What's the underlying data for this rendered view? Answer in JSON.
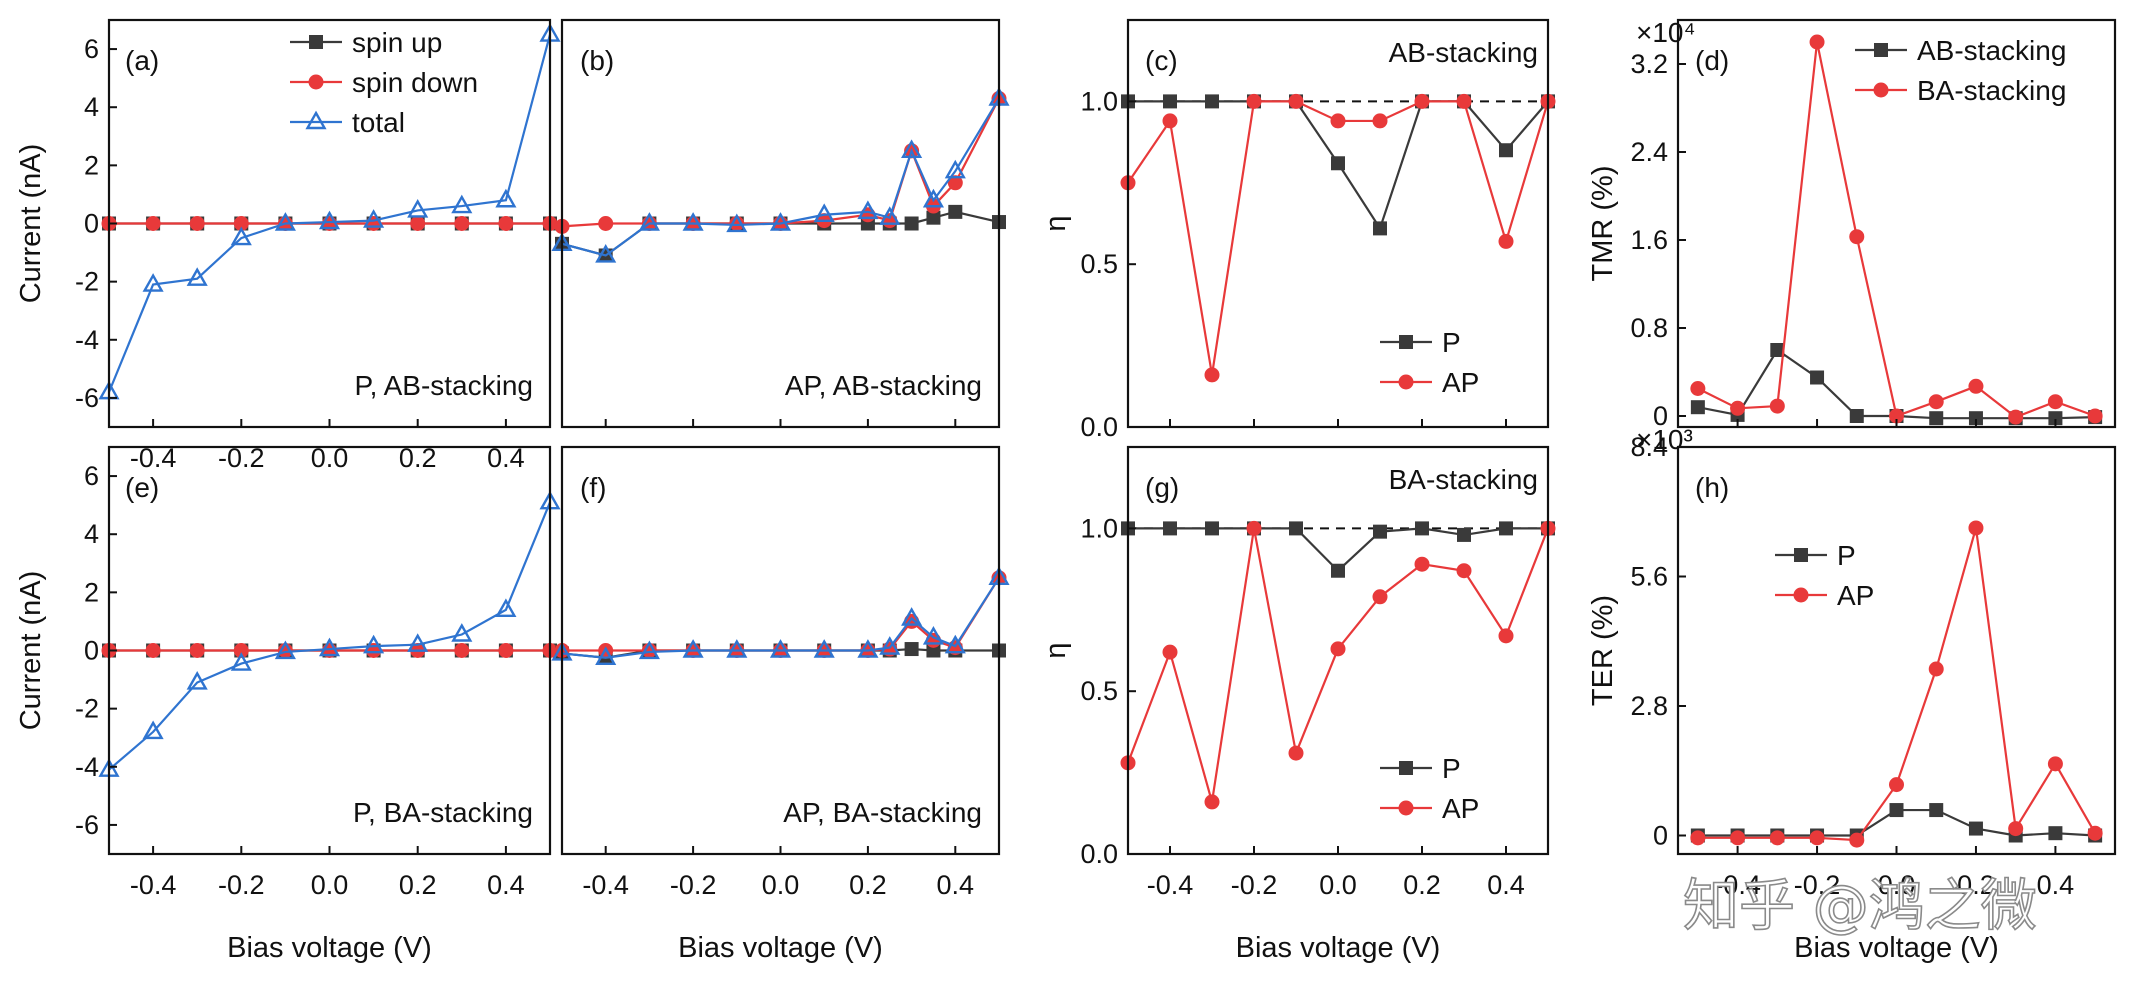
{
  "colors": {
    "black": "#3a3a3a",
    "red": "#e8393a",
    "blue": "#2f74d0",
    "dashed": "#111111"
  },
  "watermark": "知乎 @鸿之微",
  "chart_data": [
    {
      "id": "a",
      "type": "line",
      "panel_label": "(a)",
      "annotation": "P,  AB-stacking",
      "xlim": [
        -0.5,
        0.5
      ],
      "ylim": [
        -7,
        7
      ],
      "xticks": [
        "-0.4",
        "-0.2",
        "0.0",
        "0.2",
        "0.4"
      ],
      "yticks": [
        "6",
        "4",
        "2",
        "0",
        "-2",
        "-4",
        "-6"
      ],
      "ylabel": "Current (nA)",
      "xlabel": "",
      "legend": {
        "entries": [
          "spin up",
          "spin down",
          "total"
        ]
      },
      "x": [
        -0.5,
        -0.4,
        -0.3,
        -0.2,
        -0.1,
        0.0,
        0.1,
        0.2,
        0.3,
        0.4,
        0.5
      ],
      "series": [
        {
          "name": "spin up",
          "color": "black",
          "marker": "square",
          "values": [
            0,
            0,
            0,
            0,
            0,
            0,
            0,
            0,
            0,
            0,
            0
          ]
        },
        {
          "name": "spin down",
          "color": "red",
          "marker": "circle",
          "values": [
            0,
            0,
            0,
            0,
            0,
            0,
            0,
            0,
            0,
            0,
            0
          ]
        },
        {
          "name": "total",
          "color": "blue",
          "marker": "triangle",
          "values": [
            -5.8,
            -2.1,
            -1.9,
            -0.5,
            0.0,
            0.05,
            0.1,
            0.45,
            0.6,
            0.8,
            6.5
          ]
        }
      ]
    },
    {
      "id": "b",
      "type": "line",
      "panel_label": "(b)",
      "annotation": "AP,  AB-stacking",
      "xlim": [
        -0.5,
        0.5
      ],
      "ylim": [
        -7,
        7
      ],
      "xticks": [],
      "yticks": [],
      "ylabel": "",
      "xlabel": "",
      "x": [
        -0.5,
        -0.4,
        -0.3,
        -0.2,
        -0.1,
        0.0,
        0.1,
        0.2,
        0.25,
        0.3,
        0.35,
        0.4,
        0.5
      ],
      "series": [
        {
          "name": "spin up",
          "color": "black",
          "marker": "square",
          "values": [
            -0.7,
            -1.1,
            0.0,
            0.0,
            0.0,
            0.0,
            0.0,
            0.0,
            0.0,
            0.0,
            0.2,
            0.4,
            0.05
          ]
        },
        {
          "name": "spin down",
          "color": "red",
          "marker": "circle",
          "values": [
            -0.1,
            0.0,
            0.0,
            0.0,
            0.0,
            0.0,
            0.1,
            0.3,
            0.1,
            2.5,
            0.6,
            1.4,
            4.3
          ]
        },
        {
          "name": "total",
          "color": "blue",
          "marker": "triangle",
          "values": [
            -0.7,
            -1.1,
            0.0,
            0.0,
            -0.05,
            0.0,
            0.3,
            0.4,
            0.2,
            2.5,
            0.8,
            1.8,
            4.3
          ]
        }
      ]
    },
    {
      "id": "c",
      "type": "line",
      "panel_label": "(c)",
      "annotation": "AB-stacking",
      "xlim": [
        -0.5,
        0.5
      ],
      "ylim": [
        0,
        1.25
      ],
      "xticks": [],
      "yticks": [
        "1.0",
        "0.5",
        "0.0"
      ],
      "ylabel": "η",
      "xlabel": "",
      "reference_line": 1.0,
      "legend": {
        "entries": [
          "P",
          "AP"
        ]
      },
      "x": [
        -0.5,
        -0.4,
        -0.3,
        -0.2,
        -0.1,
        0.0,
        0.1,
        0.2,
        0.3,
        0.4,
        0.5
      ],
      "series": [
        {
          "name": "P",
          "color": "black",
          "marker": "square",
          "values": [
            1.0,
            1.0,
            1.0,
            1.0,
            1.0,
            0.81,
            0.61,
            1.0,
            1.0,
            0.85,
            1.0
          ]
        },
        {
          "name": "AP",
          "color": "red",
          "marker": "circle",
          "values": [
            0.75,
            0.94,
            0.16,
            1.0,
            1.0,
            0.94,
            0.94,
            1.0,
            1.0,
            0.57,
            1.0
          ]
        }
      ]
    },
    {
      "id": "d",
      "type": "line",
      "panel_label": "(d)",
      "annotation": "",
      "xlim": [
        -0.55,
        0.55
      ],
      "ylim": [
        -0.1,
        3.6
      ],
      "xticks": [],
      "yticks": [
        "3.2",
        "2.4",
        "1.6",
        "0.8",
        "0"
      ],
      "ylabel": "TMR (%)",
      "xlabel": "",
      "multiplier": "×10⁴",
      "legend": {
        "entries": [
          "AB-stacking",
          "BA-stacking"
        ]
      },
      "x": [
        -0.5,
        -0.4,
        -0.3,
        -0.2,
        -0.1,
        0.0,
        0.1,
        0.2,
        0.3,
        0.4,
        0.5
      ],
      "series": [
        {
          "name": "AB-stacking",
          "color": "black",
          "marker": "square",
          "values": [
            0.08,
            0.01,
            0.6,
            0.35,
            0.0,
            0.0,
            -0.02,
            -0.02,
            -0.02,
            -0.02,
            -0.01
          ]
        },
        {
          "name": "BA-stacking",
          "color": "red",
          "marker": "circle",
          "values": [
            0.25,
            0.07,
            0.09,
            3.4,
            1.63,
            0.0,
            0.13,
            0.27,
            -0.01,
            0.13,
            0.0
          ]
        }
      ]
    },
    {
      "id": "e",
      "type": "line",
      "panel_label": "(e)",
      "annotation": "P,  BA-stacking",
      "xlim": [
        -0.5,
        0.5
      ],
      "ylim": [
        -7,
        7
      ],
      "xticks": [
        "-0.4",
        "-0.2",
        "0.0",
        "0.2",
        "0.4"
      ],
      "yticks": [
        "6",
        "4",
        "2",
        "0",
        "-2",
        "-4",
        "-6"
      ],
      "ylabel": "Current (nA)",
      "xlabel": "Bias voltage (V)",
      "x": [
        -0.5,
        -0.4,
        -0.3,
        -0.2,
        -0.1,
        0.0,
        0.1,
        0.2,
        0.3,
        0.4,
        0.5
      ],
      "series": [
        {
          "name": "spin up",
          "color": "black",
          "marker": "square",
          "values": [
            0,
            0,
            0,
            0,
            0,
            0,
            0,
            0,
            0,
            0,
            0
          ]
        },
        {
          "name": "spin down",
          "color": "red",
          "marker": "circle",
          "values": [
            0,
            0,
            0,
            0,
            0,
            0,
            0,
            0,
            0,
            0,
            0
          ]
        },
        {
          "name": "total",
          "color": "blue",
          "marker": "triangle",
          "values": [
            -4.1,
            -2.8,
            -1.1,
            -0.45,
            -0.05,
            0.05,
            0.15,
            0.2,
            0.55,
            1.4,
            5.1
          ]
        }
      ]
    },
    {
      "id": "f",
      "type": "line",
      "panel_label": "(f)",
      "annotation": "AP,  BA-stacking",
      "xlim": [
        -0.5,
        0.5
      ],
      "ylim": [
        -7,
        7
      ],
      "xticks": [
        "-0.4",
        "-0.2",
        "0.0",
        "0.2",
        "0.4"
      ],
      "yticks": [],
      "ylabel": "",
      "xlabel": "Bias voltage (V)",
      "x": [
        -0.5,
        -0.4,
        -0.3,
        -0.2,
        -0.1,
        0.0,
        0.1,
        0.2,
        0.25,
        0.3,
        0.35,
        0.4,
        0.5
      ],
      "series": [
        {
          "name": "spin up",
          "color": "black",
          "marker": "square",
          "values": [
            -0.1,
            -0.25,
            0.0,
            0.0,
            0.0,
            0.0,
            0.0,
            0.0,
            0.0,
            0.05,
            0.0,
            0.0,
            0.0
          ]
        },
        {
          "name": "spin down",
          "color": "red",
          "marker": "circle",
          "values": [
            0.0,
            0.0,
            0.0,
            0.0,
            0.0,
            0.0,
            0.0,
            0.0,
            0.05,
            1.0,
            0.35,
            0.1,
            2.5
          ]
        },
        {
          "name": "total",
          "color": "blue",
          "marker": "triangle",
          "values": [
            -0.1,
            -0.25,
            -0.05,
            0.0,
            0.0,
            0.0,
            0.0,
            0.0,
            0.1,
            1.1,
            0.45,
            0.15,
            2.5
          ]
        }
      ]
    },
    {
      "id": "g",
      "type": "line",
      "panel_label": "(g)",
      "annotation": "BA-stacking",
      "xlim": [
        -0.5,
        0.5
      ],
      "ylim": [
        0,
        1.25
      ],
      "xticks": [
        "-0.4",
        "-0.2",
        "0.0",
        "0.2",
        "0.4"
      ],
      "yticks": [
        "1.0",
        "0.5",
        "0.0"
      ],
      "ylabel": "η",
      "xlabel": "Bias voltage (V)",
      "reference_line": 1.0,
      "legend": {
        "entries": [
          "P",
          "AP"
        ]
      },
      "x": [
        -0.5,
        -0.4,
        -0.3,
        -0.2,
        -0.1,
        0.0,
        0.1,
        0.2,
        0.3,
        0.4,
        0.5
      ],
      "series": [
        {
          "name": "P",
          "color": "black",
          "marker": "square",
          "values": [
            1.0,
            1.0,
            1.0,
            1.0,
            1.0,
            0.87,
            0.99,
            1.0,
            0.98,
            1.0,
            1.0
          ]
        },
        {
          "name": "AP",
          "color": "red",
          "marker": "circle",
          "values": [
            0.28,
            0.62,
            0.16,
            1.0,
            0.31,
            0.63,
            0.79,
            0.89,
            0.87,
            0.67,
            1.0
          ]
        }
      ]
    },
    {
      "id": "h",
      "type": "line",
      "panel_label": "(h)",
      "annotation": "",
      "xlim": [
        -0.55,
        0.55
      ],
      "ylim": [
        -0.4,
        8.4
      ],
      "xticks": [
        "-0.4",
        "-0.2",
        "0.0",
        "0.2",
        "0.4"
      ],
      "yticks": [
        "8.4",
        "5.6",
        "2.8",
        "0"
      ],
      "ylabel": "TER (%)",
      "xlabel": "Bias voltage (V)",
      "multiplier": "×10³",
      "legend": {
        "entries": [
          "P",
          "AP"
        ]
      },
      "x": [
        -0.5,
        -0.4,
        -0.3,
        -0.2,
        -0.1,
        0.0,
        0.1,
        0.2,
        0.3,
        0.4,
        0.5
      ],
      "series": [
        {
          "name": "P",
          "color": "black",
          "marker": "square",
          "values": [
            0.0,
            0.0,
            0.0,
            0.0,
            0.0,
            0.55,
            0.55,
            0.15,
            0.0,
            0.05,
            0.0
          ]
        },
        {
          "name": "AP",
          "color": "red",
          "marker": "circle",
          "values": [
            -0.05,
            -0.05,
            -0.05,
            -0.05,
            -0.1,
            1.1,
            3.6,
            6.65,
            0.15,
            1.55,
            0.05
          ]
        }
      ]
    }
  ]
}
